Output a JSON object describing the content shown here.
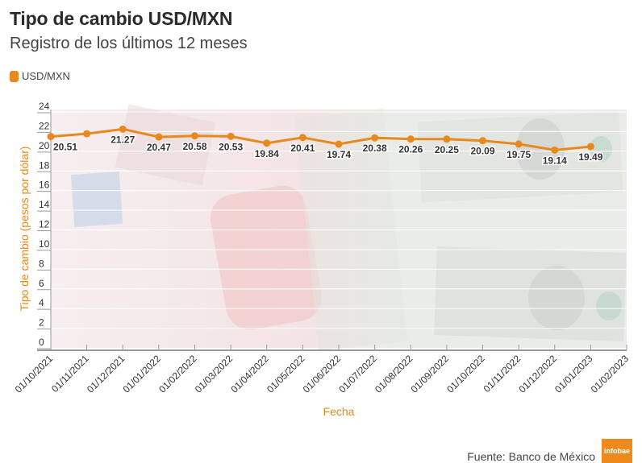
{
  "header": {
    "title": "Tipo de cambio USD/MXN",
    "subtitle": "Registro de los últimos 12 meses"
  },
  "legend": [
    {
      "label": "USD/MXN",
      "color": "#e8891f"
    }
  ],
  "footer": {
    "source": "Fuente: Banco de México",
    "logo": "infobae",
    "logo_color": "#ee8a1c"
  },
  "colors": {
    "series": "#e8891f",
    "axis_title": "#e8891f",
    "label": "#333333",
    "axis": "#9a9a9a"
  },
  "chart_data": {
    "type": "line",
    "title": "Tipo de cambio USD/MXN",
    "subtitle": "Registro de los últimos 12 meses",
    "xlabel": "Fecha",
    "ylabel": "Tipo de cambio (pesos por dólar)",
    "ylim": [
      0,
      24
    ],
    "yticks": [
      0,
      2,
      4,
      6,
      8,
      10,
      12,
      14,
      16,
      18,
      20,
      22,
      24
    ],
    "grid": true,
    "legend_position": "top-left",
    "x_ticks": [
      "01/10/2021",
      "01/11/2021",
      "01/12/2021",
      "01/01/2022",
      "01/02/2022",
      "01/03/2022",
      "01/04/2022",
      "01/05/2022",
      "01/06/2022",
      "01/07/2022",
      "01/08/2022",
      "01/09/2022",
      "01/10/2022",
      "01/11/2022",
      "01/12/2022",
      "01/01/2023",
      "01/02/2023"
    ],
    "categories": [
      "01/10/2021",
      "01/11/2021",
      "01/12/2021",
      "01/01/2022",
      "01/02/2022",
      "01/03/2022",
      "01/04/2022",
      "01/05/2022",
      "01/06/2022",
      "01/07/2022",
      "01/08/2022",
      "01/09/2022",
      "01/10/2022",
      "01/11/2022",
      "01/12/2022",
      "01/01/2023"
    ],
    "series": [
      {
        "name": "USD/MXN",
        "values": [
          20.51,
          20.8,
          21.27,
          20.47,
          20.58,
          20.53,
          19.84,
          20.41,
          19.74,
          20.38,
          20.26,
          20.25,
          20.09,
          19.75,
          19.14,
          19.49
        ],
        "labels": [
          "20.51",
          "",
          "21.27",
          "20.47",
          "20.58",
          "20.53",
          "19.84",
          "20.41",
          "19.74",
          "20.38",
          "20.26",
          "20.25",
          "20.09",
          "19.75",
          "19.14",
          "19.49"
        ]
      }
    ]
  }
}
